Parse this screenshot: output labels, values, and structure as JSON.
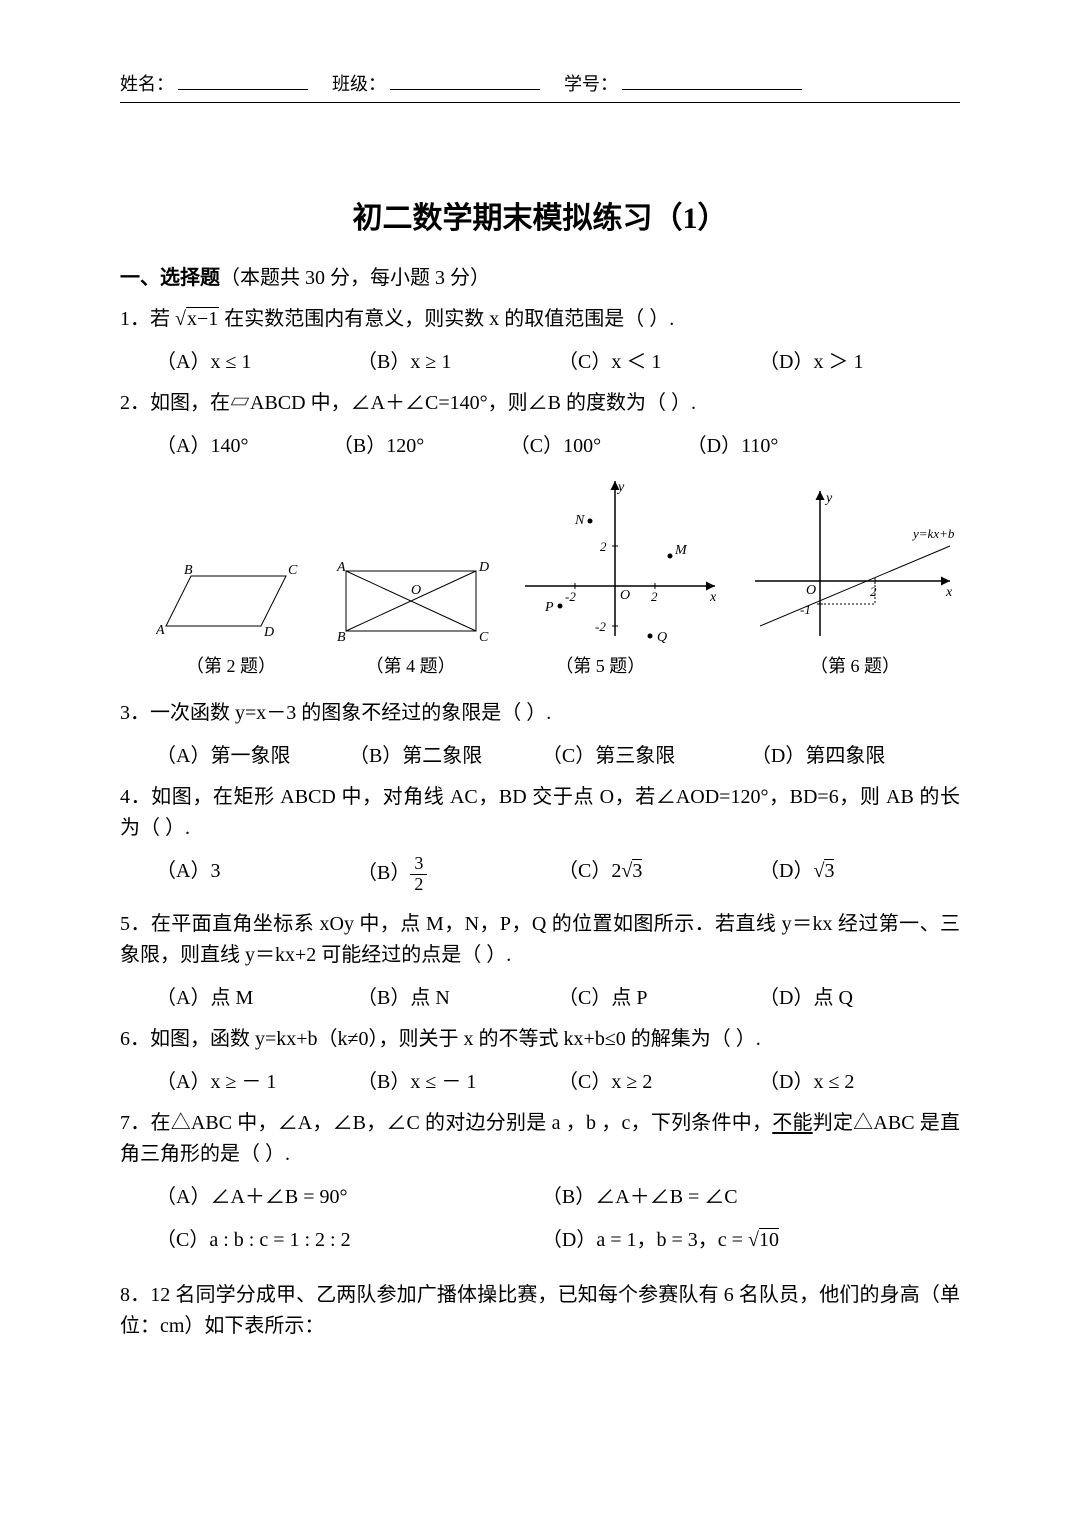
{
  "header": {
    "name_label": "姓名：",
    "class_label": "班级：",
    "id_label": "学号："
  },
  "title": "初二数学期末模拟练习（1）",
  "section_a": {
    "heading": "一、选择题",
    "sub": "（本题共 30 分，每小题 3 分）"
  },
  "q1": {
    "text_a": "1．若 ",
    "sqrt_inner": "x−1",
    "text_b": " 在实数范围内有意义，则实数 x 的取值范围是（    ）.",
    "A": "（A）x ≤ 1",
    "B": "（B）x ≥ 1",
    "C": "（C）x ＜ 1",
    "D": "（D）x ＞ 1"
  },
  "q2": {
    "text": "2．如图，在▱ABCD 中，∠A＋∠C=140°，则∠B 的度数为（    ）.",
    "A": "（A）140°",
    "B": "（B）120°",
    "C": "（C）100°",
    "D": "（D）110°"
  },
  "figs": {
    "parallelogram": {
      "caption": "（第 2 题）",
      "labels": {
        "A": "A",
        "B": "B",
        "C": "C",
        "D": "D"
      }
    },
    "rectangle": {
      "caption": "（第 4 题）",
      "labels": {
        "A": "A",
        "B": "B",
        "C": "C",
        "D": "D",
        "O": "O"
      }
    },
    "coords": {
      "caption": "（第 5 题）",
      "labels": {
        "M": "M",
        "N": "N",
        "P": "P",
        "Q": "Q",
        "x": "x",
        "y": "y"
      },
      "ticks": [
        "-2",
        "2",
        "-2",
        "2"
      ]
    },
    "line": {
      "caption": "（第 6 题）",
      "labels": {
        "x": "x",
        "y": "y",
        "O": "O",
        "eq": "y=kx+b",
        "t2": "2",
        "tm1": "-1"
      }
    }
  },
  "q3": {
    "text": "3．一次函数 y=x－3 的图象不经过的象限是（    ）.",
    "A": "（A）第一象限",
    "B": "（B）第二象限",
    "C": "（C）第三象限",
    "D": "（D）第四象限"
  },
  "q4": {
    "text": "4．如图，在矩形 ABCD 中，对角线 AC，BD 交于点 O，若∠AOD=120°，BD=6，则 AB 的长为（    ）.",
    "A": "（A）3",
    "B_prefix": "（B）",
    "B_num": "3",
    "B_den": "2",
    "C_prefix": "（C）2",
    "C_sqrt": "3",
    "D_prefix": "（D）",
    "D_sqrt": "3"
  },
  "q5": {
    "text": "5．在平面直角坐标系 xOy 中，点 M，N，P，Q 的位置如图所示．若直线 y＝kx 经过第一、三象限，则直线 y＝kx+2 可能经过的点是（    ）.",
    "A": "（A）点 M",
    "B": "（B）点 N",
    "C": "（C）点 P",
    "D": "（D）点 Q"
  },
  "q6": {
    "text": "6．如图，函数 y=kx+b（k≠0），则关于 x 的不等式 kx+b≤0 的解集为（    ）.",
    "A": "（A）x ≥ － 1",
    "B": "（B）x ≤ － 1",
    "C": "（C）x ≥ 2",
    "D": "（D）x ≤ 2"
  },
  "q7": {
    "text": "7．在△ABC 中，∠A，∠B，∠C 的对边分别是 a ，b ，c，下列条件中，不能判定△ABC 是直角三角形的是（    ）.",
    "A": "（A）∠A＋∠B = 90°",
    "B": "（B）∠A＋∠B = ∠C",
    "C": "（C）a : b : c  =  1 : 2 : 2",
    "D_prefix": "（D）a = 1，b = 3，c = ",
    "D_sqrt": "10"
  },
  "q8": {
    "text": "8．12 名同学分成甲、乙两队参加广播体操比赛，已知每个参赛队有 6 名队员，他们的身高（单位：cm）如下表所示："
  },
  "underscore_emphasis": "不能"
}
